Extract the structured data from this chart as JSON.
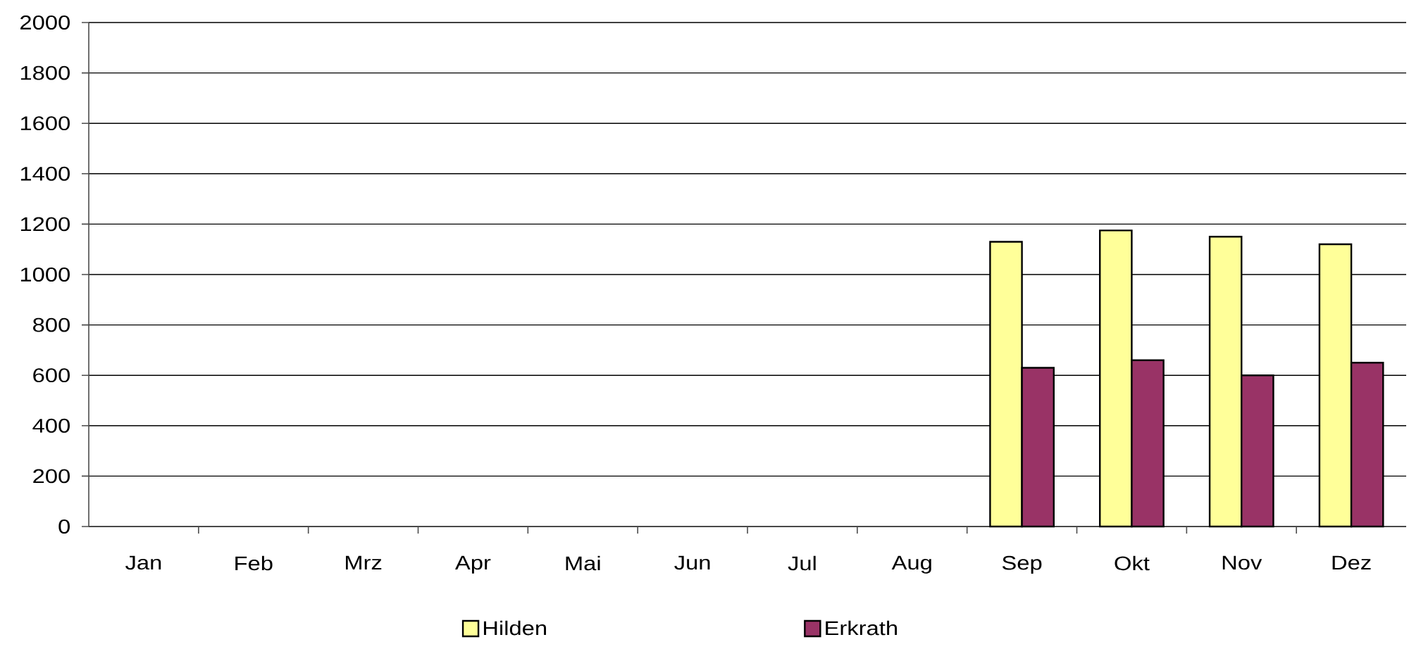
{
  "chart_data": {
    "type": "bar",
    "categories": [
      "Jan",
      "Feb",
      "Mrz",
      "Apr",
      "Mai",
      "Jun",
      "Jul",
      "Aug",
      "Sep",
      "Okt",
      "Nov",
      "Dez"
    ],
    "series": [
      {
        "name": "Hilden",
        "color": "#ffff99",
        "values": [
          null,
          null,
          null,
          null,
          null,
          null,
          null,
          null,
          1130,
          1175,
          1150,
          1120
        ]
      },
      {
        "name": "Erkrath",
        "color": "#993366",
        "values": [
          null,
          null,
          null,
          null,
          null,
          null,
          null,
          null,
          630,
          660,
          600,
          650
        ]
      }
    ],
    "ylim": [
      0,
      2000
    ],
    "yticks": [
      0,
      200,
      400,
      600,
      800,
      1000,
      1200,
      1400,
      1600,
      1800,
      2000
    ],
    "grid": "y",
    "legend": "bottom"
  }
}
